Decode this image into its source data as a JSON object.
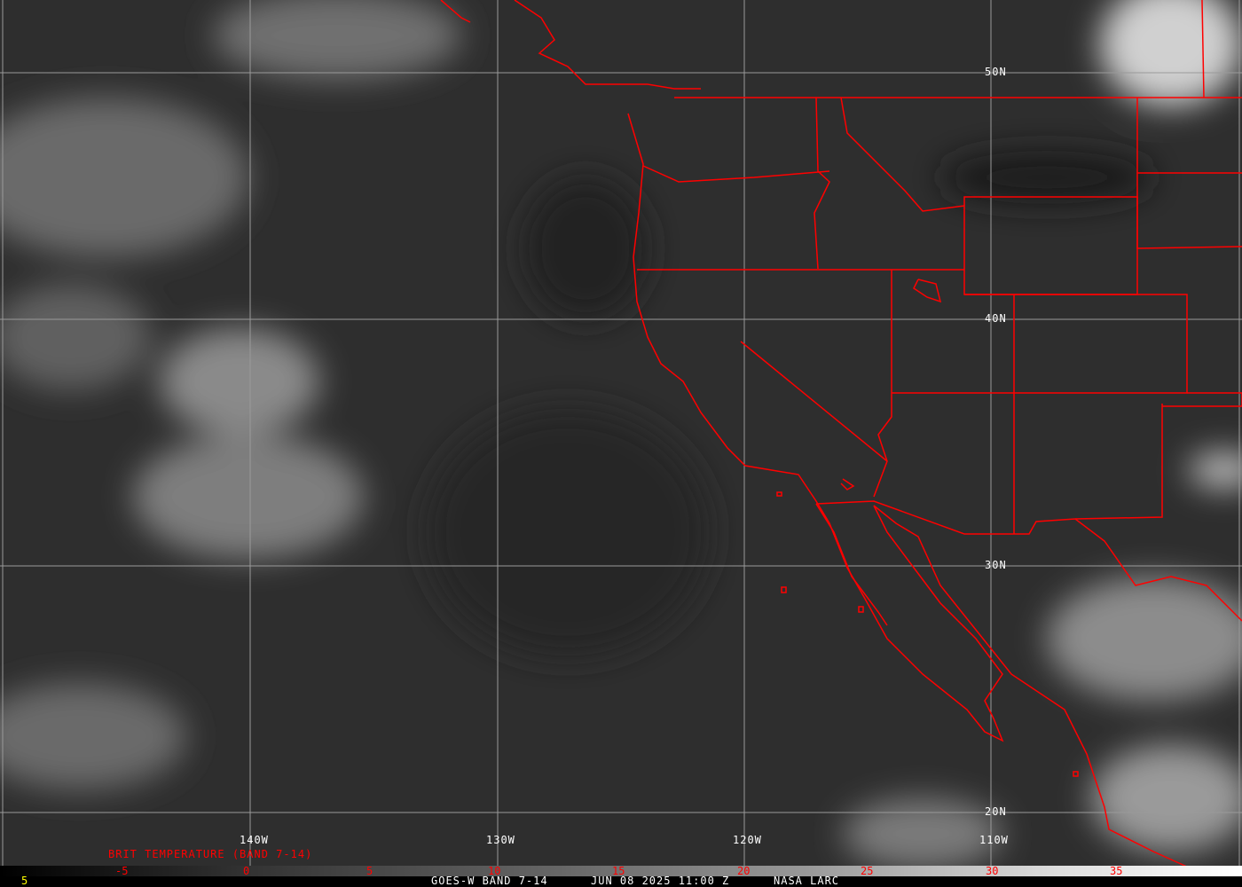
{
  "latitude_labels": [
    "50N",
    "40N",
    "30N",
    "20N"
  ],
  "longitude_labels": [
    "140W",
    "130W",
    "120W",
    "110W"
  ],
  "legend": {
    "title": "BRIT TEMPERATURE (BAND 7-14)",
    "ticks": [
      "-5",
      "0",
      "5",
      "10",
      "15",
      "20",
      "25",
      "30",
      "35"
    ],
    "left_value": "5"
  },
  "footer": {
    "satellite": "GOES-W BAND 7-14",
    "datetime": "JUN 08 2025 11:00 Z",
    "source": "NASA LARC"
  },
  "colors": {
    "borders": "#ff0000",
    "grid": "#9a9a9a",
    "labels": "#ffffff",
    "legend_text": "#ff0000",
    "footer_left": "#ffff00"
  }
}
